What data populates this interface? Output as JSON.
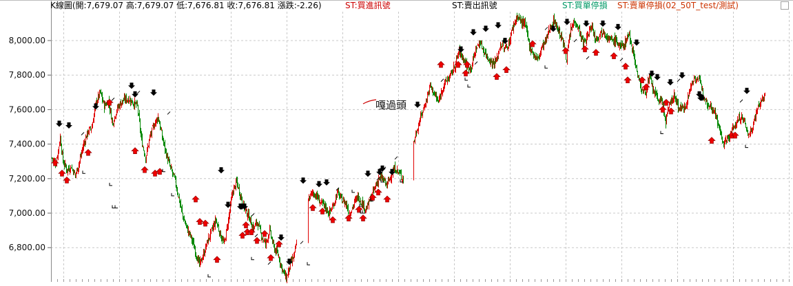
{
  "header": {
    "ohlc_text": "K線圖(開:7,679.07 高:7,679.07 低:7,676.81 收:7,676.81 漲跌:-2.26)",
    "legend": [
      {
        "label": "ST:買進訊號",
        "color": "#cc0000"
      },
      {
        "label": "ST:賣出訊號",
        "color": "#000000"
      },
      {
        "label": "ST:買單停損",
        "color": "#009966"
      },
      {
        "label": "ST:賣單停損(02_50T_test/測試)",
        "color": "#cc3300"
      }
    ]
  },
  "annotation": "嘎過頭",
  "colors": {
    "up": "#e00000",
    "down": "#008800",
    "grid": "#c8c8c8",
    "buy": "#ee0000",
    "sell": "#000000"
  },
  "chart_data": {
    "type": "candlestick",
    "yticks": [
      "8,000.00",
      "7,800.00",
      "7,600.00",
      "7,400.00",
      "7,200.00",
      "7,000.00",
      "6,800.00"
    ],
    "ytick_values": [
      8000,
      7800,
      7600,
      7400,
      7200,
      7000,
      6800
    ],
    "ylim": [
      6600,
      8200
    ],
    "grid": true,
    "close_path": [
      [
        0,
        7320
      ],
      [
        6,
        7290
      ],
      [
        12,
        7440
      ],
      [
        16,
        7300
      ],
      [
        22,
        7250
      ],
      [
        28,
        7270
      ],
      [
        34,
        7220
      ],
      [
        40,
        7300
      ],
      [
        46,
        7400
      ],
      [
        52,
        7470
      ],
      [
        58,
        7500
      ],
      [
        64,
        7640
      ],
      [
        70,
        7700
      ],
      [
        76,
        7620
      ],
      [
        82,
        7650
      ],
      [
        88,
        7520
      ],
      [
        94,
        7600
      ],
      [
        100,
        7640
      ],
      [
        106,
        7660
      ],
      [
        112,
        7660
      ],
      [
        118,
        7640
      ],
      [
        124,
        7620
      ],
      [
        130,
        7420
      ],
      [
        136,
        7320
      ],
      [
        142,
        7440
      ],
      [
        148,
        7510
      ],
      [
        154,
        7560
      ],
      [
        160,
        7440
      ],
      [
        166,
        7340
      ],
      [
        172,
        7260
      ],
      [
        178,
        7200
      ],
      [
        184,
        7090
      ],
      [
        190,
        6980
      ],
      [
        196,
        6910
      ],
      [
        202,
        6860
      ],
      [
        208,
        6780
      ],
      [
        214,
        6700
      ],
      [
        220,
        6760
      ],
      [
        226,
        6840
      ],
      [
        232,
        6900
      ],
      [
        238,
        6960
      ],
      [
        244,
        6880
      ],
      [
        250,
        6820
      ],
      [
        256,
        6960
      ],
      [
        262,
        7120
      ],
      [
        268,
        7180
      ],
      [
        274,
        7100
      ],
      [
        280,
        7020
      ],
      [
        286,
        6980
      ],
      [
        292,
        6910
      ],
      [
        298,
        6950
      ],
      [
        304,
        6870
      ],
      [
        310,
        6820
      ],
      [
        316,
        6900
      ],
      [
        322,
        6800
      ],
      [
        328,
        6760
      ],
      [
        334,
        6680
      ],
      [
        340,
        6620
      ],
      [
        346,
        6700
      ],
      [
        352,
        6760
      ],
      [
        358,
        6900
      ],
      [
        364,
        6990
      ],
      [
        372,
        7080
      ],
      [
        378,
        7120
      ],
      [
        384,
        7100
      ],
      [
        390,
        7060
      ],
      [
        396,
        7040
      ],
      [
        402,
        7000
      ],
      [
        408,
        7040
      ],
      [
        414,
        7120
      ],
      [
        420,
        7080
      ],
      [
        426,
        7060
      ],
      [
        432,
        7000
      ],
      [
        438,
        7050
      ],
      [
        444,
        7100
      ],
      [
        450,
        7060
      ],
      [
        456,
        7020
      ],
      [
        462,
        7080
      ],
      [
        468,
        7140
      ],
      [
        474,
        7200
      ],
      [
        480,
        7200
      ],
      [
        486,
        7160
      ],
      [
        492,
        7220
      ],
      [
        498,
        7260
      ],
      [
        504,
        7230
      ],
      [
        510,
        7200
      ],
      [
        525,
        7410
      ],
      [
        531,
        7500
      ],
      [
        537,
        7580
      ],
      [
        543,
        7650
      ],
      [
        549,
        7740
      ],
      [
        555,
        7690
      ],
      [
        561,
        7640
      ],
      [
        567,
        7730
      ],
      [
        573,
        7770
      ],
      [
        579,
        7800
      ],
      [
        585,
        7860
      ],
      [
        591,
        7940
      ],
      [
        597,
        7900
      ],
      [
        603,
        7840
      ],
      [
        609,
        7850
      ],
      [
        615,
        7950
      ],
      [
        621,
        7990
      ],
      [
        627,
        7940
      ],
      [
        633,
        7900
      ],
      [
        639,
        7870
      ],
      [
        645,
        7880
      ],
      [
        651,
        7980
      ],
      [
        657,
        7950
      ],
      [
        663,
        7980
      ],
      [
        669,
        8080
      ],
      [
        675,
        8140
      ],
      [
        681,
        8110
      ],
      [
        687,
        8090
      ],
      [
        693,
        7970
      ],
      [
        699,
        7920
      ],
      [
        705,
        7890
      ],
      [
        711,
        7960
      ],
      [
        717,
        8000
      ],
      [
        723,
        8080
      ],
      [
        729,
        8120
      ],
      [
        735,
        8060
      ],
      [
        741,
        8000
      ],
      [
        747,
        7900
      ],
      [
        753,
        8060
      ],
      [
        759,
        8120
      ],
      [
        765,
        8060
      ],
      [
        771,
        7980
      ],
      [
        777,
        8020
      ],
      [
        783,
        8090
      ],
      [
        789,
        8010
      ],
      [
        795,
        8040
      ],
      [
        801,
        8060
      ],
      [
        807,
        8010
      ],
      [
        813,
        8000
      ],
      [
        819,
        8000
      ],
      [
        825,
        7960
      ],
      [
        831,
        7980
      ],
      [
        837,
        8040
      ],
      [
        843,
        7950
      ],
      [
        849,
        7820
      ],
      [
        855,
        7720
      ],
      [
        861,
        7700
      ],
      [
        867,
        7780
      ],
      [
        873,
        7710
      ],
      [
        879,
        7660
      ],
      [
        885,
        7650
      ],
      [
        891,
        7530
      ],
      [
        897,
        7640
      ],
      [
        903,
        7680
      ],
      [
        909,
        7620
      ],
      [
        915,
        7600
      ],
      [
        921,
        7640
      ],
      [
        927,
        7730
      ],
      [
        933,
        7790
      ],
      [
        939,
        7770
      ],
      [
        945,
        7700
      ],
      [
        951,
        7640
      ],
      [
        957,
        7620
      ],
      [
        963,
        7580
      ],
      [
        969,
        7480
      ],
      [
        975,
        7400
      ],
      [
        981,
        7430
      ],
      [
        987,
        7480
      ],
      [
        993,
        7520
      ],
      [
        999,
        7560
      ],
      [
        1005,
        7530
      ],
      [
        1011,
        7450
      ],
      [
        1017,
        7500
      ],
      [
        1023,
        7600
      ],
      [
        1029,
        7650
      ],
      [
        1035,
        7677
      ]
    ],
    "buy_signals": [
      [
        5,
        7290
      ],
      [
        15,
        7230
      ],
      [
        22,
        7190
      ],
      [
        53,
        7350
      ],
      [
        84,
        7640
      ],
      [
        121,
        7360
      ],
      [
        135,
        7250
      ],
      [
        150,
        7230
      ],
      [
        157,
        7240
      ],
      [
        209,
        7080
      ],
      [
        215,
        6950
      ],
      [
        223,
        6940
      ],
      [
        240,
        6730
      ],
      [
        277,
        6870
      ],
      [
        282,
        6930
      ],
      [
        284,
        6890
      ],
      [
        290,
        6890
      ],
      [
        298,
        6840
      ],
      [
        309,
        6880
      ],
      [
        318,
        6740
      ],
      [
        330,
        6820
      ],
      [
        379,
        7030
      ],
      [
        393,
        7010
      ],
      [
        408,
        6960
      ],
      [
        431,
        6970
      ],
      [
        446,
        7020
      ],
      [
        452,
        6970
      ],
      [
        466,
        7090
      ],
      [
        474,
        7120
      ],
      [
        487,
        7080
      ],
      [
        565,
        7860
      ],
      [
        590,
        7860
      ],
      [
        601,
        7810
      ],
      [
        603,
        7860
      ],
      [
        646,
        7790
      ],
      [
        660,
        7830
      ],
      [
        698,
        7980
      ],
      [
        746,
        7940
      ],
      [
        774,
        7950
      ],
      [
        790,
        7930
      ],
      [
        816,
        7910
      ],
      [
        833,
        7850
      ],
      [
        836,
        7770
      ],
      [
        857,
        7770
      ],
      [
        863,
        7730
      ],
      [
        887,
        7600
      ],
      [
        892,
        7640
      ],
      [
        899,
        7590
      ],
      [
        958,
        7420
      ],
      [
        987,
        7450
      ],
      [
        992,
        7450
      ]
    ],
    "sell_signals": [
      [
        11,
        7520
      ],
      [
        25,
        7510
      ],
      [
        64,
        7620
      ],
      [
        116,
        7740
      ],
      [
        121,
        7690
      ],
      [
        148,
        7700
      ],
      [
        246,
        7250
      ],
      [
        256,
        7050
      ],
      [
        274,
        7040
      ],
      [
        276,
        7040
      ],
      [
        280,
        7040
      ],
      [
        333,
        6860
      ],
      [
        345,
        6720
      ],
      [
        365,
        7190
      ],
      [
        388,
        7170
      ],
      [
        399,
        7180
      ],
      [
        459,
        7230
      ],
      [
        476,
        7240
      ],
      [
        480,
        7260
      ],
      [
        494,
        7240
      ],
      [
        531,
        7630
      ],
      [
        594,
        7950
      ],
      [
        612,
        8050
      ],
      [
        630,
        8070
      ],
      [
        648,
        8090
      ],
      [
        658,
        8000
      ],
      [
        728,
        8070
      ],
      [
        748,
        8110
      ],
      [
        776,
        8100
      ],
      [
        800,
        8100
      ],
      [
        822,
        8080
      ],
      [
        849,
        7990
      ],
      [
        871,
        7810
      ],
      [
        879,
        7790
      ],
      [
        898,
        7760
      ],
      [
        915,
        7800
      ],
      [
        940,
        7690
      ],
      [
        942,
        7670
      ],
      [
        944,
        7670
      ],
      [
        1009,
        7710
      ]
    ],
    "buy_stops": [
      [
        45,
        7230
      ],
      [
        84,
        7160
      ],
      [
        88,
        7030
      ],
      [
        92,
        7030
      ],
      [
        161,
        7240
      ],
      [
        174,
        7100
      ],
      [
        227,
        6630
      ],
      [
        290,
        6730
      ],
      [
        371,
        6700
      ],
      [
        436,
        7120
      ],
      [
        448,
        7000
      ],
      [
        447,
        7040
      ],
      [
        451,
        7000
      ],
      [
        463,
        7070
      ],
      [
        478,
        7180
      ],
      [
        506,
        7180
      ],
      [
        600,
        7770
      ],
      [
        604,
        7730
      ],
      [
        716,
        7840
      ],
      [
        884,
        7460
      ],
      [
        1007,
        7380
      ]
    ],
    "sell_stops": [
      [
        45,
        7460
      ],
      [
        89,
        7660
      ],
      [
        126,
        7700
      ],
      [
        170,
        7580
      ],
      [
        292,
        6990
      ],
      [
        297,
        6870
      ],
      [
        316,
        6710
      ],
      [
        363,
        6830
      ],
      [
        415,
        7140
      ],
      [
        474,
        7200
      ],
      [
        483,
        7260
      ],
      [
        500,
        7320
      ],
      [
        567,
        7770
      ],
      [
        616,
        7870
      ],
      [
        718,
        8070
      ],
      [
        736,
        8060
      ],
      [
        760,
        8000
      ],
      [
        778,
        7900
      ],
      [
        827,
        7890
      ],
      [
        910,
        7770
      ],
      [
        1001,
        7650
      ]
    ]
  }
}
